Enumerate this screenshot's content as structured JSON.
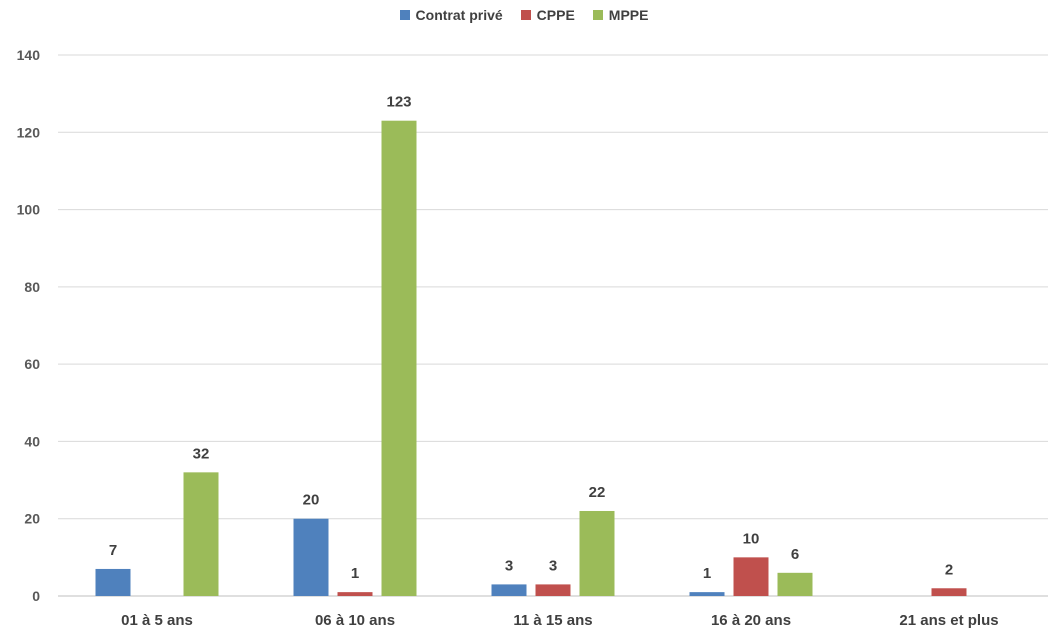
{
  "chart_data": {
    "type": "bar",
    "categories": [
      "01 à 5 ans",
      "06 à 10 ans",
      "11 à 15 ans",
      "16 à 20 ans",
      "21 ans et plus"
    ],
    "series": [
      {
        "name": "Contrat privé",
        "color": "#4F81BD",
        "values": [
          7,
          20,
          3,
          1,
          null
        ]
      },
      {
        "name": "CPPE",
        "color": "#C0504D",
        "values": [
          null,
          1,
          3,
          10,
          2
        ]
      },
      {
        "name": "MPPE",
        "color": "#9BBB59",
        "values": [
          32,
          123,
          22,
          6,
          null
        ]
      }
    ],
    "title": "",
    "xlabel": "",
    "ylabel": "",
    "ylim": [
      0,
      140
    ],
    "yticks": [
      0,
      20,
      40,
      60,
      80,
      100,
      120,
      140
    ],
    "grid": true,
    "legend_position": "top-center",
    "gridline_color": "#D9D9D9"
  }
}
